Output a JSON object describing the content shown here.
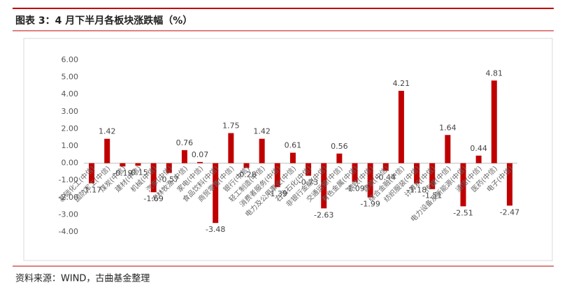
{
  "header": {
    "title": "图表 3：4 月下半月各板块涨跌幅（%）"
  },
  "chart_data": {
    "type": "bar",
    "color": "#c00000",
    "categories": [
      "基础化工(中信)",
      "国防军工(中信)",
      "煤炭(中信)",
      "建材(中信)",
      "机械(中信)",
      "汽车(中信)",
      "农林牧渔(中信)",
      "家电(中信)",
      "食品饮料(中信)",
      "商贸零售(中信)",
      "银行(中信)",
      "轻工制造(中信)",
      "消费者服务(中信)",
      "电力及公用事业(中信)",
      "石油石化(中信)",
      "非银行金融(中信)",
      "交通运输(中信)",
      "有色金属(中信)",
      "钢铁(中信)",
      "建筑(中信)",
      "综合金融(中信)",
      "纺织服装(中信)",
      "计算机(中信)",
      "传媒(中信)",
      "电力设备及新能源(中信)",
      "通信(中信)",
      "医药(中信)",
      "电子(中信)"
    ],
    "values": [
      -1.17,
      1.42,
      -0.19,
      -0.15,
      -1.69,
      -0.57,
      0.76,
      0.07,
      -3.48,
      1.75,
      -0.28,
      1.42,
      -1.39,
      0.61,
      -0.73,
      -2.63,
      0.56,
      -1.09,
      -1.99,
      -0.44,
      4.21,
      -1.18,
      -1.51,
      1.64,
      -2.51,
      0.44,
      4.81,
      -2.47
    ],
    "ylim": [
      -4,
      6
    ],
    "yticks": [
      {
        "value": -4,
        "label": "-4.00"
      },
      {
        "value": -3,
        "label": "-3.00"
      },
      {
        "value": -2,
        "label": "-2.00"
      },
      {
        "value": -1,
        "label": "-1.00"
      },
      {
        "value": 0,
        "label": "0.00"
      },
      {
        "value": 1,
        "label": "1.00"
      },
      {
        "value": 2,
        "label": "2.00"
      },
      {
        "value": 3,
        "label": "3.00"
      },
      {
        "value": 4,
        "label": "4.00"
      },
      {
        "value": 5,
        "label": "5.00"
      },
      {
        "value": 6,
        "label": "6.00"
      }
    ]
  },
  "footer": {
    "source": "资料来源：WIND，古曲基金整理"
  }
}
